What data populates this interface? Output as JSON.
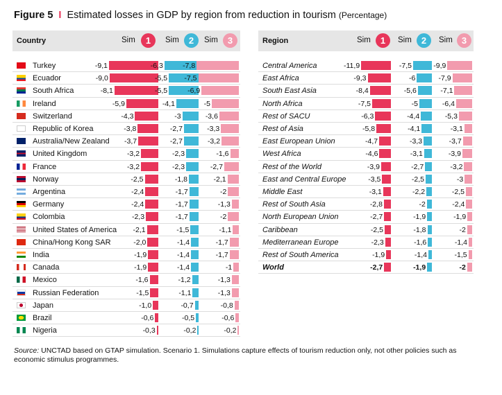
{
  "title": {
    "figure_label": "Figure 5",
    "separator": "I",
    "text": "Estimated losses in GDP by region from reduction in tourism",
    "unit": "(Percentage)"
  },
  "colors": {
    "sim1": "#e8365a",
    "sim2": "#3fb8d8",
    "sim3": "#f29bae",
    "header_band": "#e6e6e6"
  },
  "left_header": {
    "column": "Country",
    "sims": [
      {
        "label": "Sim",
        "number": "1"
      },
      {
        "label": "Sim",
        "number": "2"
      },
      {
        "label": "Sim",
        "number": "3"
      }
    ]
  },
  "right_header": {
    "column": "Region",
    "sims": [
      {
        "label": "Sim",
        "number": "1"
      },
      {
        "label": "Sim",
        "number": "2"
      },
      {
        "label": "Sim",
        "number": "3"
      }
    ]
  },
  "chart_data": [
    {
      "type": "bar",
      "orientation": "horizontal",
      "categories": [
        "Turkey",
        "Ecuador",
        "South Africa",
        "Ireland",
        "Switzerland",
        "Republic of Korea",
        "Australia/New Zealand",
        "United Kingdom",
        "France",
        "Norway",
        "Argentina",
        "Germany",
        "Colombia",
        "United States of America",
        "China/Hong Kong SAR",
        "India",
        "Canada",
        "Mexico",
        "Russian Federation",
        "Japan",
        "Brazil",
        "Nigeria"
      ],
      "flags": [
        "turkey-flag-icon",
        "ecuador-flag-icon",
        "south-africa-flag-icon",
        "ireland-flag-icon",
        "switzerland-flag-icon",
        "korea-flag-icon",
        "australia-flag-icon",
        "uk-flag-icon",
        "france-flag-icon",
        "norway-flag-icon",
        "argentina-flag-icon",
        "germany-flag-icon",
        "colombia-flag-icon",
        "usa-flag-icon",
        "china-flag-icon",
        "india-flag-icon",
        "canada-flag-icon",
        "mexico-flag-icon",
        "russia-flag-icon",
        "japan-flag-icon",
        "brazil-flag-icon",
        "nigeria-flag-icon"
      ],
      "series": [
        {
          "values": [
            "-9,1",
            "-9,0",
            "-8,1",
            "-5,9",
            "-4,3",
            "-3,8",
            "-3,7",
            "-3,2",
            "-3,2",
            "-2,5",
            "-2,4",
            "-2,4",
            "-2,3",
            "-2,1",
            "-2,0",
            "-1,9",
            "-1,9",
            "-1,6",
            "-1,5",
            "-1,0",
            "-0,6",
            "-0,3"
          ]
        },
        {
          "values": [
            "-6,3",
            "-5,5",
            "-5,5",
            "-4,1",
            "-3",
            "-2,7",
            "-2,7",
            "-2,3",
            "-2,3",
            "-1,8",
            "-1,7",
            "-1,7",
            "-1,7",
            "-1,5",
            "-1,4",
            "-1,4",
            "-1,4",
            "-1,2",
            "-1,1",
            "-0,7",
            "-0,5",
            "-0,2"
          ]
        },
        {
          "values": [
            "-7,8",
            "-7,5",
            "-6,9",
            "-5",
            "-3,6",
            "-3,3",
            "-3,2",
            "-1,6",
            "-2,7",
            "-2,1",
            "-2",
            "-1,3",
            "-2",
            "-1,1",
            "-1,7",
            "-1,7",
            "-1",
            "-1,3",
            "-1,3",
            "-0,8",
            "-0,6",
            "-0,2"
          ]
        }
      ]
    },
    {
      "type": "bar",
      "orientation": "horizontal",
      "categories": [
        "Central America",
        "East Africa",
        "South East Asia",
        "North Africa",
        "Rest of SACU",
        "Rest of Asia",
        "East European Union",
        "West Africa",
        "Rest of the World",
        "East and Central Europe",
        "Middle East",
        "Rest of South Asia",
        "North European Union",
        "Caribbean",
        "Mediterranean Europe",
        "Rest of South America",
        "World"
      ],
      "series": [
        {
          "values": [
            "-11,9",
            "-9,3",
            "-8,4",
            "-7,5",
            "-6,3",
            "-5,8",
            "-4,7",
            "-4,6",
            "-3,9",
            "-3,5",
            "-3,1",
            "-2,8",
            "-2,7",
            "-2,5",
            "-2,3",
            "-1,9",
            "-2,7"
          ]
        },
        {
          "values": [
            "-7,5",
            "-6",
            "-5,6",
            "-5",
            "-4,4",
            "-4,1",
            "-3,3",
            "-3,1",
            "-2,7",
            "-2,5",
            "-2,2",
            "-2",
            "-1,9",
            "-1,8",
            "-1,6",
            "-1,4",
            "-1,9"
          ]
        },
        {
          "values": [
            "-9,9",
            "-7,9",
            "-7,1",
            "-6,4",
            "-5,3",
            "-3,1",
            "-3,7",
            "-3,9",
            "-3,2",
            "-3",
            "-2,5",
            "-2,4",
            "-1,9",
            "-2",
            "-1,4",
            "-1,5",
            "-2"
          ]
        }
      ]
    }
  ],
  "source": {
    "label": "Source:",
    "text": " UNCTAD based on GTAP simulation. Scenario 1. Simulations capture effects of tourism reduction only, not other policies such as economic stimulus programmes."
  }
}
